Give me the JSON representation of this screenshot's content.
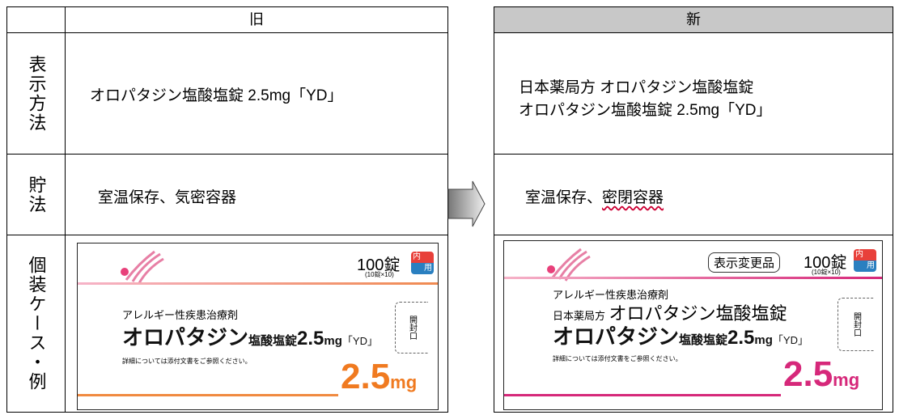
{
  "old": {
    "header": "旧",
    "rows": [
      {
        "label": "表示方法",
        "lines": [
          "オロパタジン塩酸塩錠 2.5mg「YD」"
        ]
      },
      {
        "label": "貯法",
        "lines": [
          "室温保存、気密容器"
        ]
      },
      {
        "label": "個装ケース・例",
        "package": {
          "count": "100錠",
          "count_sub": "(10錠×10)",
          "badge_top": "内",
          "badge_bottom": "用",
          "category": "アレルギー性疾患治療剤",
          "name": "オロパタジン",
          "salt": "塩酸塩錠",
          "dose": "2.5",
          "dose_unit": "mg",
          "brand": "「YD」",
          "note": "詳細については添付文書をご参照ください。",
          "big_dose": "2.5",
          "big_unit": "mg",
          "side": "開封口"
        }
      }
    ]
  },
  "new": {
    "header": "新",
    "rows": [
      {
        "lines": [
          "日本薬局方 オロパタジン塩酸塩錠",
          "オロパタジン塩酸塩錠 2.5mg「YD」"
        ]
      },
      {
        "plain": "室温保存、",
        "changed": "密閉容器"
      },
      {
        "package": {
          "label": "表示変更品",
          "count": "100錠",
          "count_sub": "(10錠×10)",
          "badge_top": "内",
          "badge_bottom": "用",
          "category": "アレルギー性疾患治療剤",
          "jp": "日本薬局方",
          "jp_name": "オロパタジン塩酸塩錠",
          "name": "オロパタジン",
          "salt": "塩酸塩錠",
          "dose": "2.5",
          "dose_unit": "mg",
          "brand": "「YD」",
          "note": "詳細については添付文書をご参照ください。",
          "big_dose": "2.5",
          "big_unit": "mg",
          "side": "開封口"
        }
      }
    ]
  }
}
